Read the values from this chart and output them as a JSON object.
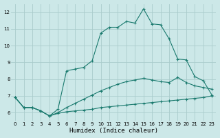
{
  "xlabel": "Humidex (Indice chaleur)",
  "background_color": "#cce8e8",
  "grid_color": "#aacccc",
  "line_color": "#1a7a6e",
  "xlim": [
    -0.5,
    23.5
  ],
  "ylim": [
    5.5,
    12.5
  ],
  "xticks": [
    0,
    1,
    2,
    3,
    4,
    5,
    6,
    7,
    8,
    9,
    10,
    11,
    12,
    13,
    14,
    15,
    16,
    17,
    18,
    19,
    20,
    21,
    22,
    23
  ],
  "yticks": [
    6,
    7,
    8,
    9,
    10,
    11,
    12
  ],
  "line1_x": [
    0,
    1,
    2,
    3,
    4,
    5,
    6,
    7,
    8,
    9,
    10,
    11,
    12,
    13,
    14,
    15,
    16,
    17,
    18,
    19,
    20,
    21,
    22,
    23
  ],
  "line1_y": [
    6.9,
    6.3,
    6.3,
    6.1,
    5.8,
    5.95,
    6.05,
    6.1,
    6.15,
    6.2,
    6.3,
    6.35,
    6.4,
    6.45,
    6.5,
    6.55,
    6.6,
    6.65,
    6.7,
    6.75,
    6.8,
    6.85,
    6.9,
    7.0
  ],
  "line2_x": [
    0,
    1,
    2,
    3,
    4,
    5,
    6,
    7,
    8,
    9,
    10,
    11,
    12,
    13,
    14,
    15,
    16,
    17,
    18,
    19,
    20,
    21,
    22,
    23
  ],
  "line2_y": [
    6.9,
    6.3,
    6.3,
    6.1,
    5.8,
    6.0,
    6.3,
    6.55,
    6.8,
    7.05,
    7.3,
    7.5,
    7.7,
    7.85,
    7.95,
    8.05,
    7.95,
    7.85,
    7.8,
    8.1,
    7.8,
    7.6,
    7.5,
    7.4
  ],
  "line3_x": [
    0,
    1,
    2,
    3,
    4,
    5,
    6,
    7,
    8,
    9,
    10,
    11,
    12,
    13,
    14,
    15,
    16,
    17,
    18,
    19,
    20,
    21,
    22,
    23
  ],
  "line3_y": [
    6.9,
    6.3,
    6.3,
    6.1,
    5.8,
    6.2,
    8.5,
    8.6,
    8.7,
    9.1,
    10.75,
    11.1,
    11.1,
    11.45,
    11.35,
    12.2,
    11.3,
    11.25,
    10.4,
    9.2,
    9.15,
    8.15,
    7.9,
    7.05
  ]
}
